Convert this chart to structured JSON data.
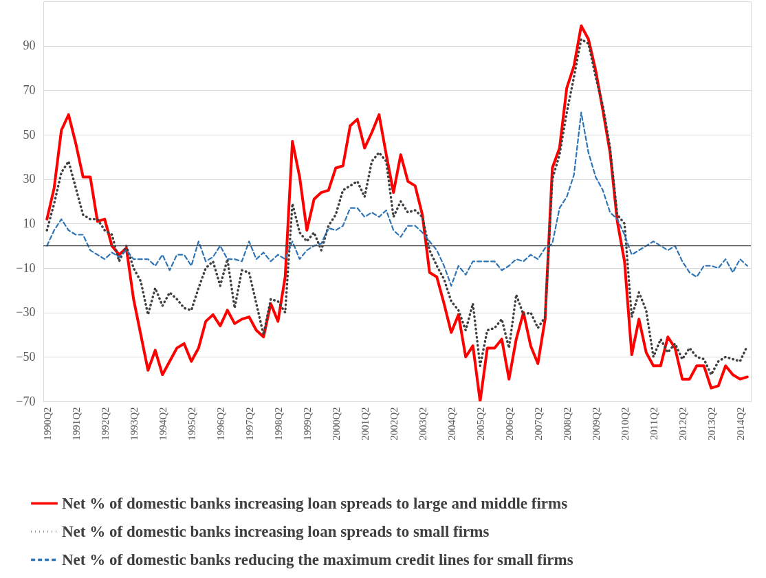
{
  "chart_data": {
    "type": "line",
    "categories": [
      "1990Q2",
      null,
      null,
      null,
      "1991Q2",
      null,
      null,
      null,
      "1992Q2",
      null,
      null,
      null,
      "1993Q2",
      null,
      null,
      null,
      "1994Q2",
      null,
      null,
      null,
      "1995Q2",
      null,
      null,
      null,
      "1996Q2",
      null,
      null,
      null,
      "1997Q2",
      null,
      null,
      null,
      "1998Q2",
      null,
      null,
      null,
      "1999Q2",
      null,
      null,
      null,
      "2000Q2",
      null,
      null,
      null,
      "2001Q2",
      null,
      null,
      null,
      "2002Q2",
      null,
      null,
      null,
      "2003Q2",
      null,
      null,
      null,
      "2004Q2",
      null,
      null,
      null,
      "2005Q2",
      null,
      null,
      null,
      "2006Q2",
      null,
      null,
      null,
      "2007Q2",
      null,
      null,
      null,
      "2008Q2",
      null,
      null,
      null,
      "2009Q2",
      null,
      null,
      null,
      "2010Q2",
      null,
      null,
      null,
      "2011Q2",
      null,
      null,
      null,
      "2012Q2",
      null,
      null,
      null,
      "2013Q2",
      null,
      null,
      null,
      "2014Q2",
      null
    ],
    "series": [
      {
        "name": "Net % of domestic banks increasing loan spreads to large and middle firms",
        "color": "#ff0000",
        "line_style": "solid",
        "values": [
          12,
          26,
          52,
          59,
          46,
          31,
          31,
          11,
          12,
          0,
          -4,
          -1,
          -24,
          -40,
          -56,
          -47,
          -58,
          -52,
          -46,
          -44,
          -52,
          -46,
          -34,
          -31,
          -36,
          -29,
          -35,
          -33,
          -32,
          -38,
          -41,
          -26,
          -34,
          -14,
          47,
          31,
          7,
          21,
          24,
          25,
          35,
          36,
          54,
          57,
          44,
          51,
          59,
          41,
          24,
          41,
          29,
          27,
          14,
          -12,
          -14,
          -26,
          -39,
          -31,
          -50,
          -45,
          -70,
          -46,
          -46,
          -42,
          -60,
          -42,
          -30,
          -45,
          -53,
          -33,
          35,
          44,
          71,
          81,
          99,
          93,
          79,
          61,
          42,
          11,
          -7,
          -49,
          -33,
          -48,
          -54,
          -54,
          -41,
          -46,
          -60,
          -60,
          -54,
          -54,
          -64,
          -63,
          -54,
          -58,
          -60,
          -59
        ]
      },
      {
        "name": "Net % of domestic banks increasing loan spreads to small firms",
        "color": "#404040",
        "line_style": "dotted",
        "values": [
          7,
          19,
          33,
          38,
          26,
          14,
          12,
          12,
          7,
          5,
          -7,
          0,
          -10,
          -16,
          -31,
          -19,
          -27,
          -21,
          -24,
          -28,
          -29,
          -19,
          -10,
          -7,
          -18,
          -6,
          -28,
          -11,
          -12,
          -26,
          -40,
          -24,
          -25,
          -30,
          19,
          6,
          2,
          6,
          -2,
          9,
          14,
          25,
          27,
          29,
          22,
          38,
          42,
          38,
          13,
          20,
          15,
          16,
          13,
          -2,
          -9,
          -15,
          -25,
          -29,
          -38,
          -26,
          -54,
          -38,
          -37,
          -33,
          -46,
          -22,
          -31,
          -30,
          -37,
          -32,
          30,
          41,
          60,
          76,
          93,
          91,
          76,
          63,
          44,
          14,
          10,
          -32,
          -21,
          -29,
          -50,
          -42,
          -48,
          -44,
          -51,
          -46,
          -50,
          -51,
          -58,
          -52,
          -50,
          -51,
          -52,
          -45
        ]
      },
      {
        "name": "Net % of domestic banks reducing the maximum credit lines for small firms",
        "color": "#2e75b6",
        "line_style": "dashed",
        "values": [
          0,
          7,
          12,
          7,
          5,
          5,
          -2,
          -4,
          -6,
          -3,
          -5,
          -2,
          -6,
          -6,
          -6,
          -9,
          -4,
          -11,
          -4,
          -4,
          -9,
          2,
          -7,
          -5,
          0,
          -6,
          -6,
          -7,
          2,
          -6,
          -3,
          -7,
          -4,
          -6,
          2,
          -6,
          -2,
          0,
          1,
          8,
          7,
          9,
          17,
          17,
          13,
          15,
          13,
          16,
          7,
          4,
          9,
          9,
          6,
          2,
          -2,
          -9,
          -18,
          -9,
          -13,
          -7,
          -7,
          -7,
          -7,
          -11,
          -9,
          -6,
          -7,
          -4,
          -6,
          -1,
          1,
          17,
          22,
          32,
          60,
          42,
          31,
          25,
          15,
          12,
          5,
          -4,
          -2,
          0,
          2,
          0,
          -2,
          0,
          -7,
          -12,
          -14,
          -9,
          -9,
          -10,
          -6,
          -12,
          -6,
          -9
        ]
      }
    ],
    "ylim": [
      -70,
      110
    ],
    "yticks": [
      -70,
      -50,
      -30,
      -10,
      10,
      30,
      50,
      70,
      90
    ],
    "grid": "y",
    "legend": "bottom",
    "ref_lines": [
      {
        "axis": "y",
        "value": 0,
        "color": "#404040"
      }
    ]
  }
}
